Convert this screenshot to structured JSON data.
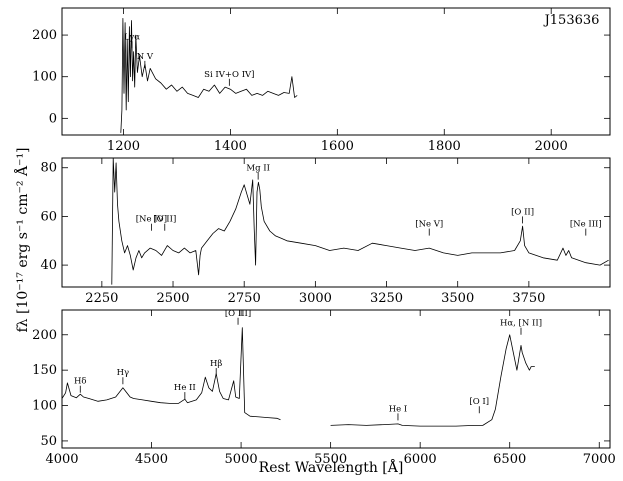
{
  "chart_data": {
    "type": "line",
    "object_label": "J153636",
    "xlabel": "Rest Wavelength [Å]",
    "ylabel": "fλ [10⁻¹⁷ erg s⁻¹ cm⁻² Å⁻¹]",
    "panels": [
      {
        "id": "uv",
        "xlim": [
          1085,
          2110
        ],
        "ylim": [
          -40,
          265
        ],
        "xticks": [
          1200,
          1400,
          1600,
          1800,
          2000
        ],
        "yticks": [
          0,
          100,
          200
        ],
        "ytick_labels": [
          "0",
          "100",
          "200"
        ],
        "series": [
          {
            "x": [
              1195,
              1197,
              1199,
              1201,
              1203,
              1205,
              1207,
              1209,
              1211,
              1213,
              1215,
              1217,
              1219,
              1221,
              1223,
              1226,
              1230,
              1235,
              1240,
              1245,
              1250,
              1260,
              1270,
              1280,
              1290,
              1300,
              1310,
              1320,
              1330,
              1340,
              1350,
              1360,
              1370,
              1380,
              1390,
              1400,
              1410,
              1420,
              1430,
              1440,
              1450,
              1460,
              1470,
              1480,
              1490,
              1500,
              1510,
              1515,
              1520,
              1525
            ],
            "y": [
              -35,
              20,
              240,
              60,
              230,
              20,
              190,
              40,
              220,
              100,
              235,
              90,
              160,
              75,
              200,
              110,
              150,
              100,
              130,
              90,
              120,
              95,
              85,
              70,
              80,
              65,
              75,
              60,
              55,
              50,
              70,
              65,
              80,
              60,
              75,
              70,
              60,
              65,
              70,
              55,
              60,
              55,
              65,
              60,
              55,
              62,
              60,
              100,
              50,
              55
            ]
          }
        ],
        "annotations": [
          {
            "label": "Lyα",
            "x": 1216,
            "y": 185
          },
          {
            "label": "N V",
            "x": 1240,
            "y": 138
          },
          {
            "label": "Si IV+O IV]",
            "x": 1398,
            "y": 95
          }
        ]
      },
      {
        "id": "mid",
        "xlim": [
          2110,
          4035
        ],
        "ylim": [
          31,
          84
        ],
        "xticks": [
          2250,
          2500,
          2750,
          3000,
          3250,
          3500,
          3750
        ],
        "yticks": [
          40,
          60,
          80
        ],
        "ytick_labels": [
          "40",
          "60",
          "80"
        ],
        "series": [
          {
            "x": [
              2285,
              2290,
              2295,
              2300,
              2305,
              2310,
              2320,
              2330,
              2340,
              2350,
              2360,
              2370,
              2380,
              2390,
              2400,
              2420,
              2440,
              2460,
              2480,
              2500,
              2520,
              2540,
              2560,
              2580,
              2590,
              2595,
              2600,
              2620,
              2640,
              2660,
              2680,
              2700,
              2720,
              2740,
              2750,
              2760,
              2770,
              2780,
              2785,
              2790,
              2795,
              2800,
              2805,
              2810,
              2820,
              2840,
              2860,
              2880,
              2900,
              2950,
              3000,
              3050,
              3100,
              3150,
              3200,
              3250,
              3300,
              3350,
              3400,
              3450,
              3500,
              3550,
              3600,
              3650,
              3700,
              3720,
              3728,
              3735,
              3750,
              3800,
              3850,
              3870,
              3880,
              3890,
              3900,
              3950,
              4000,
              4030
            ],
            "y": [
              32,
              84,
              70,
              82,
              65,
              58,
              50,
              45,
              48,
              44,
              38,
              43,
              46,
              43,
              45,
              47,
              46,
              44,
              48,
              46,
              45,
              47,
              45,
              46,
              36,
              44,
              47,
              50,
              53,
              55,
              54,
              58,
              63,
              70,
              73,
              69,
              65,
              75,
              55,
              40,
              70,
              74,
              71,
              64,
              58,
              54,
              52,
              51,
              50,
              49,
              48,
              46,
              47,
              46,
              49,
              48,
              47,
              46,
              47,
              45,
              44,
              45,
              45,
              45,
              46,
              50,
              56,
              48,
              45,
              43,
              42,
              47,
              44,
              46,
              43,
              41,
              40,
              42
            ]
          }
        ],
        "annotations": [
          {
            "label": "[Ne IV]",
            "x": 2424,
            "y": 57
          },
          {
            "label": "[O II]",
            "x": 2471,
            "y": 57
          },
          {
            "label": "Mg II",
            "x": 2799,
            "y": 78
          },
          {
            "label": "[Ne V]",
            "x": 3400,
            "y": 55
          },
          {
            "label": "[O II]",
            "x": 3728,
            "y": 60
          },
          {
            "label": "[Ne III]",
            "x": 3950,
            "y": 55
          }
        ]
      },
      {
        "id": "optical",
        "xlim": [
          4000,
          7060
        ],
        "ylim": [
          40,
          235
        ],
        "xticks": [
          4000,
          4500,
          5000,
          5500,
          6000,
          6500,
          7000
        ],
        "yticks": [
          50,
          100,
          150,
          200
        ],
        "ytick_labels": [
          "50",
          "100",
          "150",
          "200"
        ],
        "series": [
          {
            "x": [
              4000,
              4020,
              4030,
              4050,
              4080,
              4102,
              4120,
              4150,
              4200,
              4250,
              4300,
              4340,
              4380,
              4400,
              4450,
              4500,
              4550,
              4600,
              4650,
              4686,
              4700,
              4750,
              4780,
              4800,
              4820,
              4840,
              4861,
              4880,
              4900,
              4930,
              4959,
              4970,
              4990,
              5007,
              5020,
              5050,
              5100,
              5150,
              5200,
              5220
            ],
            "y": [
              110,
              118,
              132,
              114,
              111,
              116,
              112,
              110,
              106,
              108,
              112,
              125,
              112,
              110,
              108,
              106,
              104,
              103,
              103,
              109,
              104,
              108,
              118,
              140,
              125,
              120,
              145,
              120,
              110,
              108,
              135,
              112,
              110,
              210,
              90,
              85,
              84,
              83,
              82,
              80
            ]
          },
          {
            "x": [
              5500,
              5600,
              5700,
              5800,
              5876,
              5900,
              6000,
              6100,
              6200,
              6300,
              6350,
              6400,
              6420,
              6450,
              6480,
              6500,
              6520,
              6540,
              6563,
              6570,
              6590,
              6610,
              6620,
              6640
            ],
            "y": [
              72,
              73,
              72,
              73,
              74,
              72,
              71,
              71,
              71,
              72,
              72,
              80,
              95,
              140,
              180,
              200,
              175,
              150,
              185,
              175,
              160,
              150,
              155,
              155
            ]
          }
        ],
        "annotations": [
          {
            "label": "Hδ",
            "x": 4102,
            "y": 128
          },
          {
            "label": "Hγ",
            "x": 4340,
            "y": 140
          },
          {
            "label": "He II",
            "x": 4686,
            "y": 119
          },
          {
            "label": "Hβ",
            "x": 4861,
            "y": 153
          },
          {
            "label": "[O III]",
            "x": 4983,
            "y": 224
          },
          {
            "label": "He I",
            "x": 5876,
            "y": 89
          },
          {
            "label": "[O I]",
            "x": 6330,
            "y": 99
          },
          {
            "label": "Hα, [N II]",
            "x": 6563,
            "y": 210
          }
        ]
      }
    ]
  }
}
